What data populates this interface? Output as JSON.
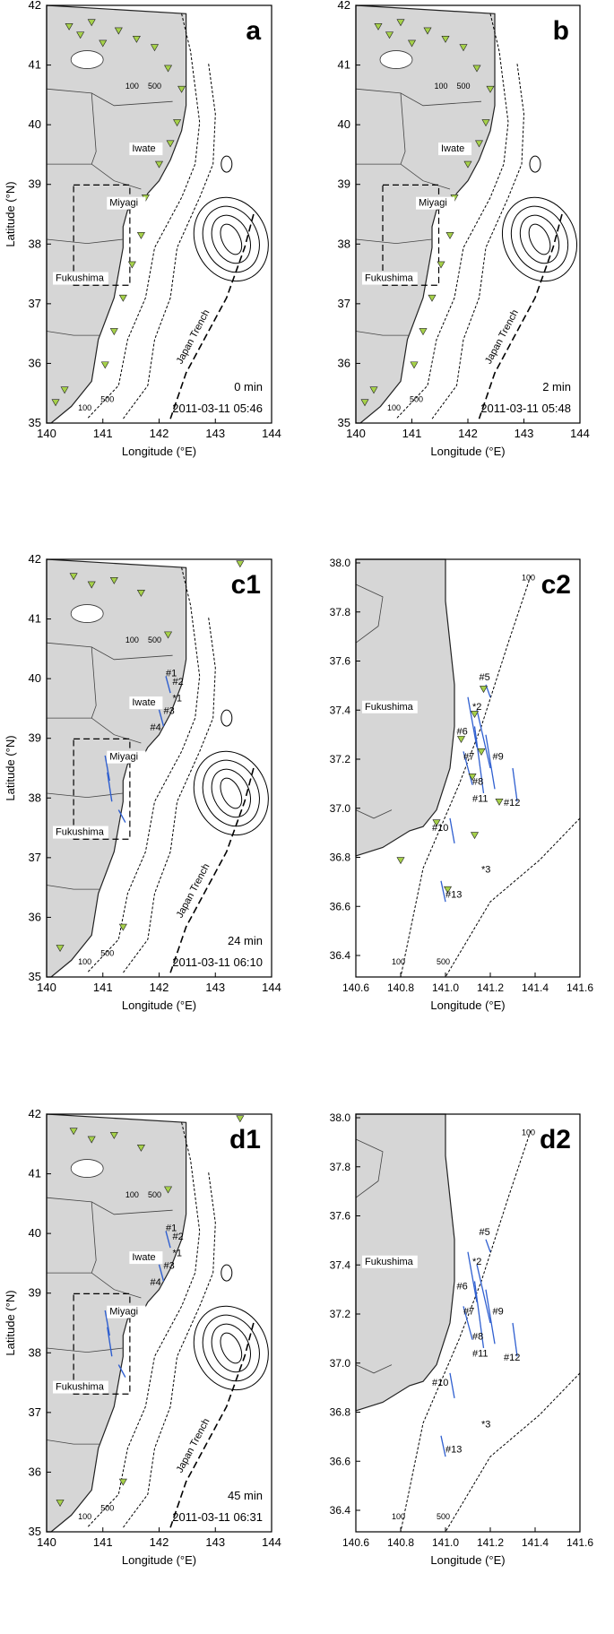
{
  "figure": {
    "axis_labels": {
      "latitude": "Latitude (°N)",
      "longitude": "Longitude (°E)"
    },
    "region_labels": [
      "Iwate",
      "Miyagi",
      "Fukushima"
    ],
    "trench_label": "Japan Trench",
    "colors": {
      "land": "#d6d6d6",
      "marker": "#a6d14a",
      "fault": "#2f5fd0"
    },
    "big_panels": [
      {
        "id": "a",
        "elapsed": "0 min",
        "timestamp": "2011-03-11 05:46",
        "xticks": [
          "140",
          "141",
          "142",
          "143",
          "144"
        ],
        "yticks": [
          "35",
          "36",
          "37",
          "38",
          "39",
          "40",
          "41",
          "42"
        ],
        "depth_labels": [
          "100",
          "500",
          "100",
          "500"
        ]
      },
      {
        "id": "b",
        "elapsed": "2 min",
        "timestamp": "2011-03-11 05:48",
        "xticks": [
          "140",
          "141",
          "142",
          "143",
          "144"
        ],
        "yticks": [
          "35",
          "36",
          "37",
          "38",
          "39",
          "40",
          "41",
          "42"
        ],
        "depth_labels": [
          "100",
          "500",
          "100",
          "500"
        ]
      },
      {
        "id": "c1",
        "elapsed": "24 min",
        "timestamp": "2011-03-11 06:10",
        "xticks": [
          "140",
          "141",
          "142",
          "143",
          "144"
        ],
        "yticks": [
          "35",
          "36",
          "37",
          "38",
          "39",
          "40",
          "41",
          "42"
        ],
        "depth_labels": [
          "100",
          "500",
          "100",
          "500"
        ],
        "station_labels": [
          "#1",
          "#2",
          "*1",
          "#3",
          "#4"
        ]
      },
      {
        "id": "d1",
        "elapsed": "45 min",
        "timestamp": "2011-03-11 06:31",
        "xticks": [
          "140",
          "141",
          "142",
          "143",
          "144"
        ],
        "yticks": [
          "35",
          "36",
          "37",
          "38",
          "39",
          "40",
          "41",
          "42"
        ],
        "depth_labels": [
          "100",
          "500",
          "100",
          "500"
        ],
        "station_labels": [
          "#1",
          "#2",
          "*1",
          "#3",
          "#4"
        ]
      }
    ],
    "zoom_panels": [
      {
        "id": "c2",
        "xticks": [
          "140.6",
          "140.8",
          "141.0",
          "141.2",
          "141.4",
          "141.6"
        ],
        "yticks": [
          "36.4",
          "36.6",
          "36.8",
          "37.0",
          "37.2",
          "37.4",
          "37.6",
          "37.8",
          "38.0"
        ],
        "depth_labels": [
          "100",
          "100",
          "500"
        ],
        "station_labels": [
          "#5",
          "*2",
          "#6",
          "#7",
          "#9",
          "#8",
          "#11",
          "#12",
          "#10",
          "*3",
          "#13"
        ]
      },
      {
        "id": "d2",
        "xticks": [
          "140.6",
          "140.8",
          "141.0",
          "141.2",
          "141.4",
          "141.6"
        ],
        "yticks": [
          "36.4",
          "36.6",
          "36.8",
          "37.0",
          "37.2",
          "37.4",
          "37.6",
          "37.8",
          "38.0"
        ],
        "depth_labels": [
          "100",
          "100",
          "500"
        ],
        "station_labels": [
          "#5",
          "*2",
          "#6",
          "#7",
          "#9",
          "#8",
          "#11",
          "#12",
          "#10",
          "*3",
          "#13"
        ]
      }
    ]
  }
}
